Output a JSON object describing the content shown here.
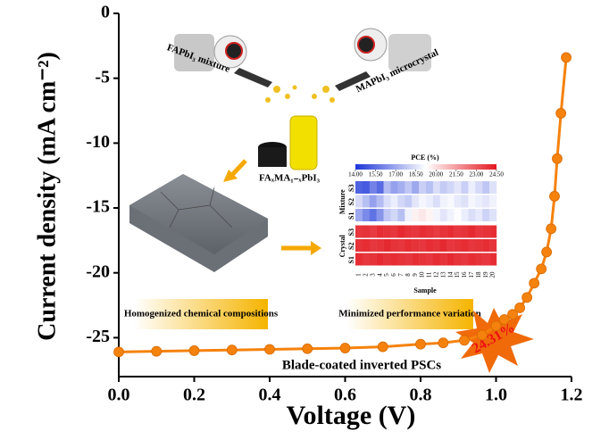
{
  "chart_data": [
    {
      "type": "line",
      "xlabel": "Voltage (V)",
      "ylabel": "Current density (mA cm⁻²)",
      "xlim": [
        0,
        1.2
      ],
      "ylim": [
        -28,
        0
      ],
      "xticks": [
        {
          "value": 0,
          "label": "0.0"
        },
        0.2,
        0.4,
        0.6,
        0.8,
        {
          "value": 1,
          "label": "1.0"
        },
        1.2
      ],
      "yticks": [
        0,
        -5,
        -10,
        -15,
        -20,
        -25
      ],
      "series": [
        {
          "color": "#f5820d",
          "x": [
            0,
            0.1,
            0.2,
            0.3,
            0.4,
            0.5,
            0.6,
            0.7,
            0.8,
            0.86,
            0.916,
            0.963,
            1.0,
            1.022,
            1.044,
            1.063,
            1.082,
            1.101,
            1.12,
            1.134,
            1.146,
            1.155,
            1.162,
            1.172,
            1.186
          ],
          "values": [
            -26.1,
            -26.05,
            -26.0,
            -25.95,
            -25.9,
            -25.85,
            -25.8,
            -25.7,
            -25.5,
            -25.4,
            -25.2,
            -24.8,
            -24.1,
            -23.6,
            -23.2,
            -22.7,
            -21.9,
            -20.8,
            -19.7,
            -18.4,
            -16.6,
            -14.1,
            -11.2,
            -7.7,
            -3.4
          ]
        }
      ]
    },
    {
      "type": "heatmap",
      "title": "PCE (%)",
      "xlabel": "Sample",
      "x": [
        1,
        2,
        3,
        4,
        5,
        6,
        7,
        8,
        9,
        10,
        11,
        12,
        13,
        14,
        15,
        16,
        17,
        18,
        19,
        20
      ],
      "groups": [
        {
          "name": "Mixture",
          "rows": [
            "S3",
            "S2",
            "S1"
          ]
        },
        {
          "name": "Crystal",
          "rows": [
            "S3",
            "S2",
            "S1"
          ]
        }
      ],
      "zlim": [
        14,
        24.5
      ],
      "colors": [
        "#1b35d8",
        "#ffffff",
        "#e3171f"
      ],
      "zticks": [
        {
          "value": 14,
          "label": "14.00"
        },
        {
          "value": 15.5,
          "label": "15.50"
        },
        {
          "value": 17,
          "label": "17.00"
        },
        {
          "value": 18.5,
          "label": "18.50"
        },
        {
          "value": 20,
          "label": "20.00"
        },
        {
          "value": 21.5,
          "label": "21.50"
        },
        {
          "value": 23,
          "label": "23.00"
        },
        {
          "value": 24.5,
          "label": "24.50"
        }
      ],
      "values": [
        [
          15.2,
          15.0,
          16.0,
          15.4,
          17.5,
          16.8,
          17.2,
          17.8,
          17.0,
          18.0,
          17.6,
          18.4,
          17.9,
          18.2,
          18.6,
          18.0,
          18.8,
          18.3,
          17.8,
          18.5
        ],
        [
          18.3,
          17.6,
          16.8,
          17.5,
          18.4,
          18.8,
          18.2,
          17.9,
          18.6,
          19.0,
          18.8,
          18.4,
          18.9,
          19.1,
          18.7,
          18.5,
          19.0,
          18.8,
          18.6,
          18.9
        ],
        [
          17.0,
          16.2,
          15.6,
          16.5,
          17.8,
          18.2,
          17.6,
          18.9,
          19.6,
          19.8,
          19.5,
          19.0,
          18.6,
          18.9,
          19.2,
          18.8,
          18.4,
          18.7,
          18.1,
          18.5
        ],
        [
          23.8,
          23.9,
          23.7,
          24.0,
          23.9,
          23.8,
          24.1,
          23.9,
          23.8,
          24.0,
          23.9,
          23.7,
          23.9,
          24.0,
          23.8,
          23.9,
          24.1,
          23.8,
          23.9,
          24.0
        ],
        [
          23.9,
          24.0,
          23.8,
          23.9,
          24.1,
          23.9,
          23.8,
          24.0,
          23.9,
          23.8,
          24.0,
          23.9,
          24.1,
          23.8,
          23.9,
          24.0,
          23.8,
          23.9,
          24.0,
          23.9
        ],
        [
          24.0,
          23.8,
          23.9,
          24.1,
          23.9,
          24.0,
          23.9,
          23.8,
          24.0,
          23.9,
          23.8,
          24.0,
          23.9,
          24.1,
          23.9,
          23.8,
          24.0,
          23.9,
          23.8,
          24.0
        ]
      ]
    }
  ],
  "annotations": {
    "mixture": "FAPbI₃ mixture",
    "crystal": "MAPbI₃ microcrystal",
    "precursor": "FAₓMA₁₋ₓPbI₃",
    "left_box": "Homogenized chemical compositions",
    "right_box": "Minimized performance variation",
    "device": "Blade-coated inverted PSCs",
    "pce": "24.31%"
  }
}
